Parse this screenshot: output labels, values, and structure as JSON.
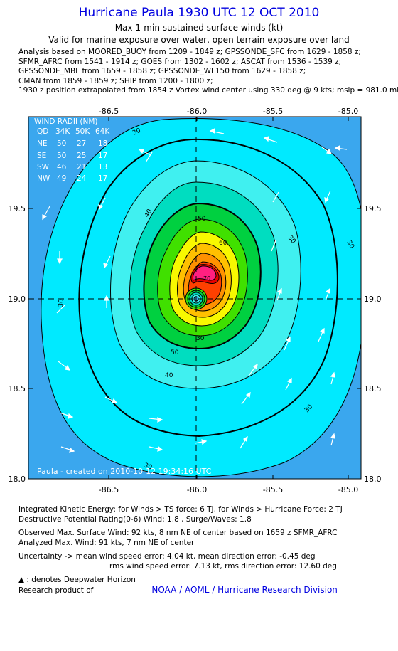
{
  "header": {
    "title": "Hurricane Paula 1930 UTC 12 OCT 2010",
    "subtitle": "Max 1-min sustained surface winds (kt)",
    "valid_for": "Valid for marine exposure over water, open terrain exposure over land"
  },
  "analysis_lines": [
    "Analysis based on MOORED_BUOY from 1209 - 1849 z; GPSSONDE_SFC from 1629 - 1858 z;",
    "SFMR_AFRC from 1541 - 1914 z; GOES from 1302 - 1602 z; ASCAT from 1536 - 1539 z;",
    "GPSSONDE_MBL from 1659 - 1858 z; GPSSONDE_WL150 from 1629 - 1858 z;",
    "CMAN from 1859 - 1859 z; SHIP from 1200 - 1800 z;",
    "1930 z position extrapolated from 1854 z Vortex wind center using 330 deg @ 9 kts; mslp = 981.0 mb"
  ],
  "map": {
    "lon_ticks": [
      "-86.5",
      "-86.0",
      "-85.5",
      "-85.0"
    ],
    "lat_ticks": [
      "19.5",
      "19.0",
      "18.5",
      "18.0"
    ],
    "lon_range": [
      -86.95,
      -85.0
    ],
    "lat_range": [
      18.0,
      19.98
    ],
    "center": {
      "lon": -86.0,
      "lat": 19.0
    },
    "contour_labels": [
      "30",
      "40",
      "50",
      "60",
      "70",
      "30",
      "40",
      "50",
      "30",
      "30",
      "30",
      "30",
      "30"
    ],
    "credit": "Paula - created on 2010-10-12 19:34:16 UTC",
    "wind_radii": {
      "title": "WIND RADII (NM)",
      "headers": [
        "QD",
        "34K",
        "50K",
        "64K"
      ],
      "rows": [
        [
          "NE",
          "50",
          "27",
          "18"
        ],
        [
          "SE",
          "50",
          "25",
          "17"
        ],
        [
          "SW",
          "46",
          "21",
          "13"
        ],
        [
          "NW",
          "49",
          "24",
          "17"
        ]
      ]
    },
    "colors": {
      "bg_blue": "#3aa7ee",
      "cyan": "#00eaff",
      "light_cyan": "#40f0f0",
      "aqua": "#00ddc0",
      "green": "#00d040",
      "bright_green": "#40e000",
      "yellow": "#f8f800",
      "orange": "#ff9000",
      "red_orange": "#ff4000",
      "red": "#e80000",
      "magenta": "#ff2080"
    }
  },
  "footer": {
    "ike": "Integrated Kinetic Energy:  for Winds > TS force: 6 TJ,  for Winds > Hurricane Force: 2 TJ",
    "dpr": "Destructive Potential Rating(0-6)   Wind: 1.8 , Surge/Waves: 1.8",
    "observed": "Observed Max. Surface Wind: 92 kts, 8 nm NE of center based on 1659 z SFMR_AFRC",
    "analyzed": "Analyzed Max. Wind: 91 kts, 7 nm NE of center",
    "uncertainty1": "Uncertainty -> mean wind speed error: 4.04 kt,   mean direction error:  -0.45 deg",
    "uncertainty2": "rms wind speed error: 7.13 kt,   rms direction error: 12.60 deg",
    "deepwater": ": denotes Deepwater Horizon",
    "research": "Research product of",
    "org": "NOAA / AOML / Hurricane Research Division"
  }
}
